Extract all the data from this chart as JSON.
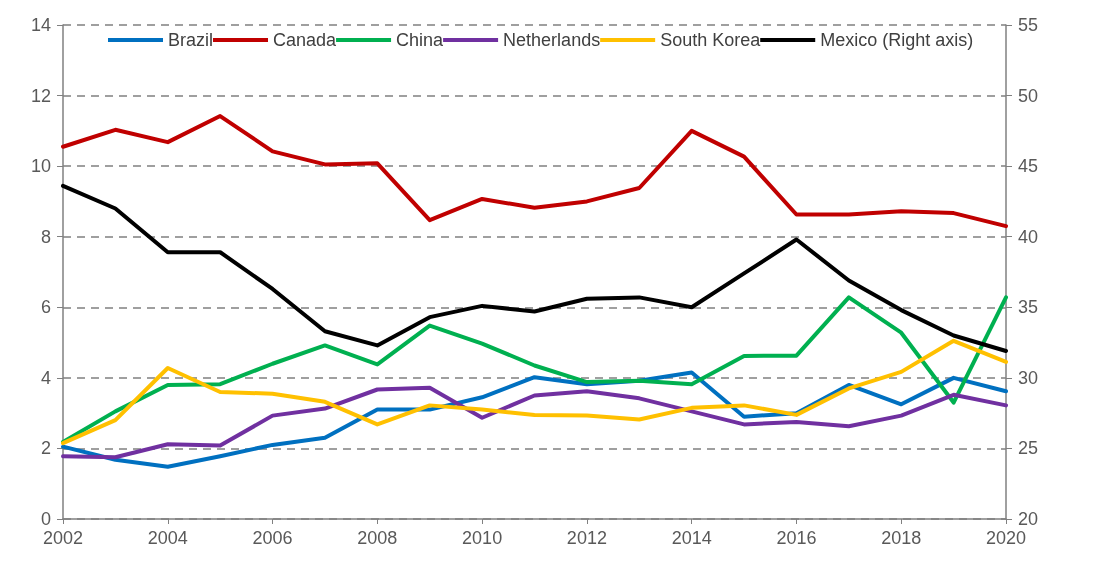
{
  "chart_data": {
    "type": "line",
    "x": [
      2002,
      2003,
      2004,
      2005,
      2006,
      2007,
      2008,
      2009,
      2010,
      2011,
      2012,
      2013,
      2014,
      2015,
      2016,
      2017,
      2018,
      2019,
      2020
    ],
    "series": [
      {
        "name": "Brazil",
        "color": "#0070c0",
        "values": [
          2.05,
          1.68,
          1.48,
          1.78,
          2.1,
          2.3,
          3.1,
          3.1,
          3.45,
          4.02,
          3.82,
          3.92,
          4.15,
          2.9,
          3.0,
          3.8,
          3.25,
          4.0,
          3.62
        ]
      },
      {
        "name": "Canada",
        "color": "#c00000",
        "values": [
          10.55,
          11.03,
          10.68,
          11.42,
          10.42,
          10.05,
          10.08,
          8.47,
          9.07,
          8.82,
          9.0,
          9.38,
          11.0,
          10.27,
          8.63,
          8.63,
          8.72,
          8.67,
          8.3
        ]
      },
      {
        "name": "China",
        "color": "#00b050",
        "values": [
          2.18,
          3.05,
          3.8,
          3.82,
          4.4,
          4.92,
          4.38,
          5.48,
          4.97,
          4.35,
          3.88,
          3.92,
          3.82,
          4.62,
          4.63,
          6.28,
          5.28,
          3.3,
          6.28
        ]
      },
      {
        "name": "Netherlands",
        "color": "#7030a0",
        "values": [
          1.78,
          1.75,
          2.12,
          2.08,
          2.93,
          3.13,
          3.67,
          3.72,
          2.87,
          3.5,
          3.62,
          3.42,
          3.05,
          2.68,
          2.75,
          2.63,
          2.93,
          3.52,
          3.22
        ]
      },
      {
        "name": "South Korea",
        "color": "#ffc000",
        "values": [
          2.15,
          2.8,
          4.28,
          3.6,
          3.55,
          3.32,
          2.68,
          3.22,
          3.1,
          2.95,
          2.93,
          2.82,
          3.15,
          3.22,
          2.95,
          3.7,
          4.17,
          5.05,
          4.45
        ]
      },
      {
        "name": "Mexico (Right axis)",
        "color": "#000000",
        "axis": "y2",
        "values": [
          43.6,
          42.0,
          38.9,
          38.9,
          36.3,
          33.3,
          32.3,
          34.3,
          35.1,
          34.7,
          35.6,
          35.7,
          35.0,
          37.4,
          39.8,
          36.9,
          34.8,
          33.0,
          31.9
        ]
      }
    ],
    "xlim": [
      2002,
      2020
    ],
    "xticks": [
      2002,
      2004,
      2006,
      2008,
      2010,
      2012,
      2014,
      2016,
      2018,
      2020
    ],
    "ylim": [
      0,
      14
    ],
    "yticks": [
      0,
      2,
      4,
      6,
      8,
      10,
      12,
      14
    ],
    "y2lim": [
      20,
      55
    ],
    "y2ticks": [
      20,
      25,
      30,
      35,
      40,
      45,
      50,
      55
    ],
    "grid": "y",
    "legend": "top",
    "marker": "none",
    "line_style": "solid"
  }
}
